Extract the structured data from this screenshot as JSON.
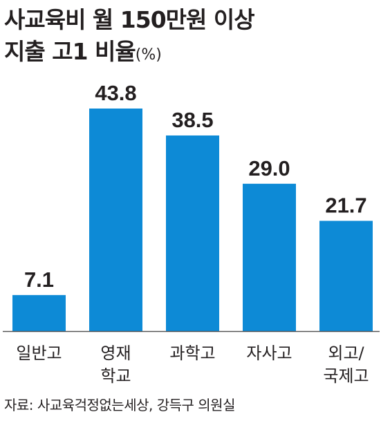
{
  "title": {
    "line1": "사교육비 월 150만원 이상",
    "line2": "지출 고1 비율",
    "unit": "(%)"
  },
  "source": "자료: 사교육걱정없는세상, 강득구 의원실",
  "colors": {
    "bar": "#0d8ad6",
    "axis": "#555555",
    "text": "#231f20"
  },
  "chart_data": {
    "type": "bar",
    "title": "사교육비 월 150만원 이상 지출 고1 비율",
    "unit": "%",
    "categories": [
      [
        "일반고"
      ],
      [
        "영재",
        "학교"
      ],
      [
        "과학고"
      ],
      [
        "자사고"
      ],
      [
        "외고/",
        "국제고"
      ]
    ],
    "values": [
      7.1,
      43.8,
      38.5,
      29.0,
      21.7
    ],
    "value_labels": [
      "7.1",
      "43.8",
      "38.5",
      "29.0",
      "21.7"
    ],
    "ylim": [
      0,
      43.8
    ],
    "grid": false,
    "legend": "none"
  }
}
